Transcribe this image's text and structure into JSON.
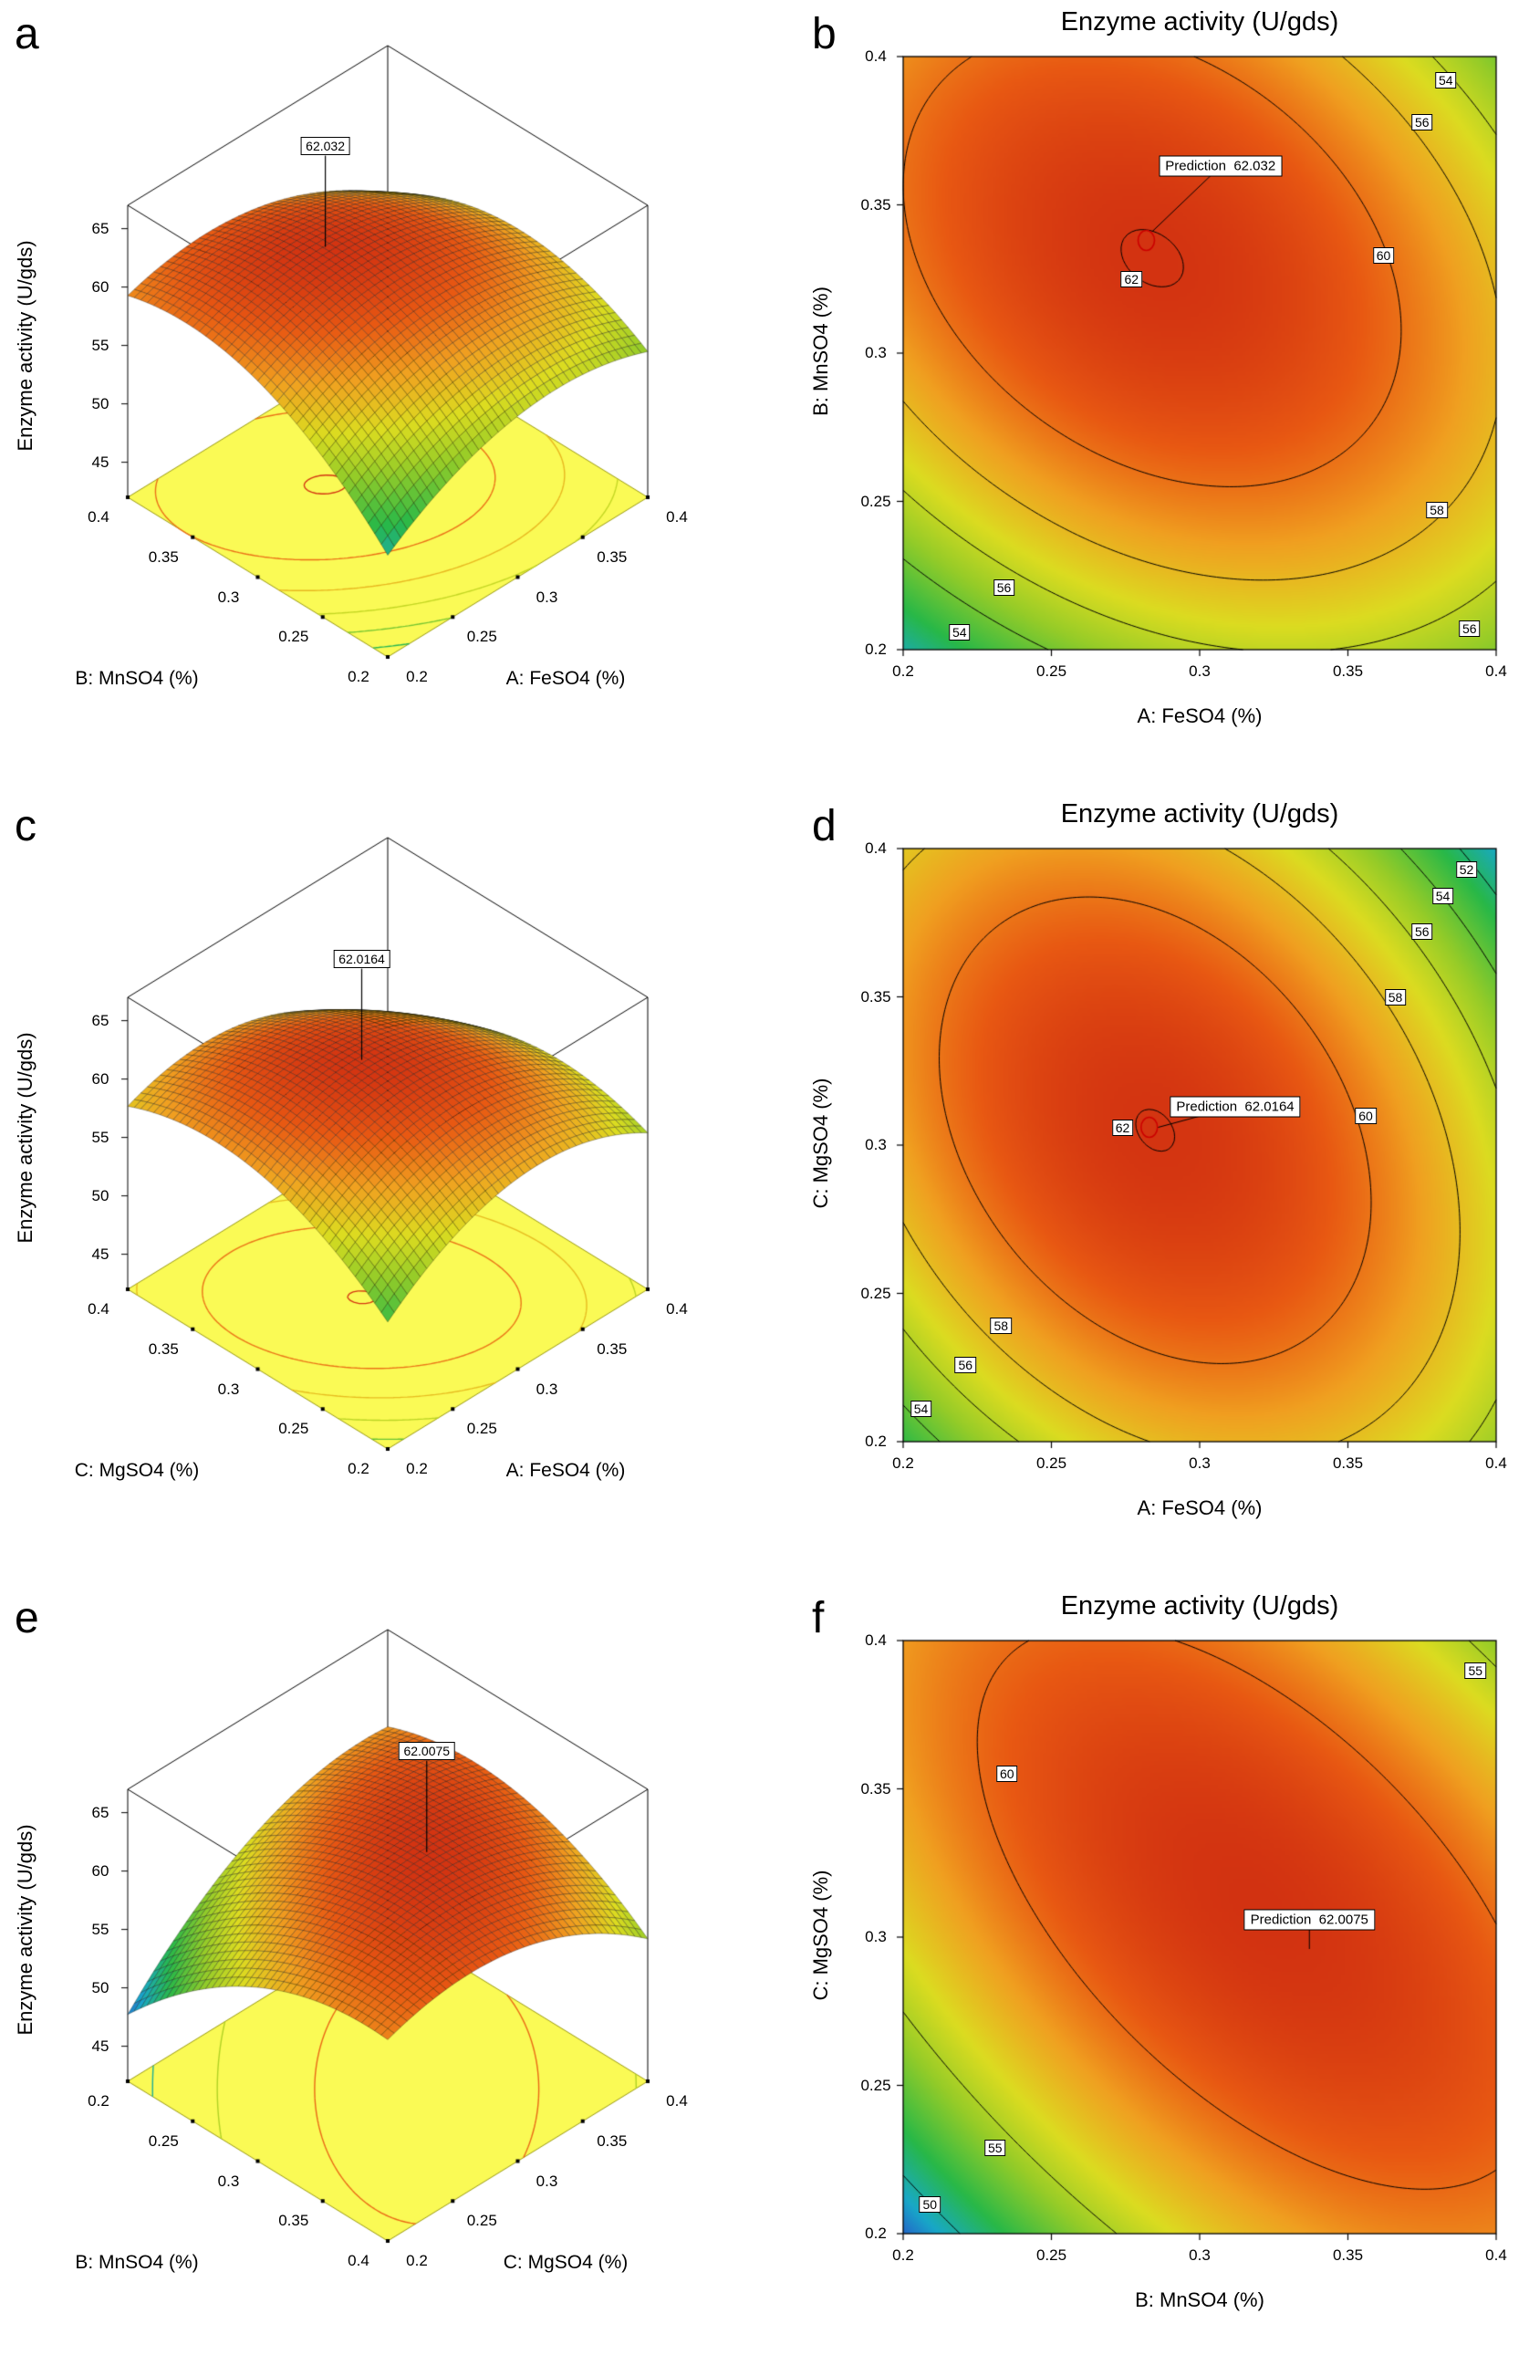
{
  "figure": {
    "background": "#ffffff"
  },
  "colors": {
    "colormap": [
      [
        0,
        "#2850c8"
      ],
      [
        0.13,
        "#18a8c8"
      ],
      [
        0.28,
        "#28b848"
      ],
      [
        0.45,
        "#96cc28"
      ],
      [
        0.58,
        "#dcdc20"
      ],
      [
        0.72,
        "#f0a020"
      ],
      [
        0.84,
        "#e85812"
      ],
      [
        1,
        "#c41a10"
      ]
    ],
    "surface_floor": "#fafa55",
    "marker_red": "#cc0000"
  },
  "chart_data": [
    {
      "type": "surface3d",
      "letter": "a",
      "z_axis": "Enzyme activity (U/gds)",
      "left_axis": "B: MnSO4 (%)",
      "right_axis": "A: FeSO4 (%)",
      "left_ticks": [
        "0.2",
        "0.25",
        "0.3",
        "0.35",
        "0.4"
      ],
      "right_ticks": [
        "0.2",
        "0.25",
        "0.3",
        "0.35",
        "0.4"
      ],
      "z_ticks": [
        "45",
        "50",
        "55",
        "60",
        "65"
      ],
      "zlim": [
        45,
        65
      ],
      "left_range": [
        0.2,
        0.4
      ],
      "right_range": [
        0.2,
        0.4
      ],
      "peak_label": "62.032",
      "model": {
        "zmax": 62.032,
        "a0": 0.284,
        "b0": 0.332,
        "caa": 3.2,
        "cbb": 3.8,
        "cab": 2.2
      },
      "crange": [
        48,
        63
      ],
      "base_levels": [
        52,
        54,
        56,
        58,
        60,
        62
      ]
    },
    {
      "type": "contour",
      "letter": "b",
      "title": "Enzyme activity (U/gds)",
      "x_axis": "A: FeSO4 (%)",
      "y_axis": "B: MnSO4 (%)",
      "x_ticks": [
        "0.2",
        "0.25",
        "0.3",
        "0.35",
        "0.4"
      ],
      "y_ticks": [
        "0.2",
        "0.25",
        "0.3",
        "0.35",
        "0.4"
      ],
      "x_range": [
        0.2,
        0.4
      ],
      "y_range": [
        0.2,
        0.4
      ],
      "model": {
        "zmax": 62.032,
        "a0": 0.284,
        "b0": 0.332,
        "caa": 3.2,
        "cbb": 3.8,
        "cab": 2.2
      },
      "crange": [
        48,
        63
      ],
      "levels": [
        54,
        56,
        58,
        60,
        62
      ],
      "contour_labels": [
        {
          "v": "54",
          "x": 0.383,
          "y": 0.392
        },
        {
          "v": "56",
          "x": 0.375,
          "y": 0.378
        },
        {
          "v": "60",
          "x": 0.362,
          "y": 0.333
        },
        {
          "v": "58",
          "x": 0.38,
          "y": 0.247
        },
        {
          "v": "56",
          "x": 0.391,
          "y": 0.207
        },
        {
          "v": "56",
          "x": 0.234,
          "y": 0.221
        },
        {
          "v": "54",
          "x": 0.219,
          "y": 0.206
        },
        {
          "v": "62",
          "x": 0.277,
          "y": 0.325
        }
      ],
      "prediction": {
        "label": "Prediction",
        "value": "62.032",
        "x": 0.284,
        "y": 0.341,
        "box_x": 0.307,
        "box_y": 0.363
      },
      "marker": {
        "x": 0.282,
        "y": 0.338
      }
    },
    {
      "type": "surface3d",
      "letter": "c",
      "z_axis": "Enzyme activity (U/gds)",
      "left_axis": "C: MgSO4 (%)",
      "right_axis": "A: FeSO4 (%)",
      "left_ticks": [
        "0.2",
        "0.25",
        "0.3",
        "0.35",
        "0.4"
      ],
      "right_ticks": [
        "0.2",
        "0.25",
        "0.3",
        "0.35",
        "0.4"
      ],
      "z_ticks": [
        "45",
        "50",
        "55",
        "60",
        "65"
      ],
      "zlim": [
        45,
        65
      ],
      "left_range": [
        0.2,
        0.4
      ],
      "right_range": [
        0.2,
        0.4
      ],
      "peak_label": "62.0164",
      "model": {
        "zmax": 62.0164,
        "a0": 0.285,
        "b0": 0.305,
        "caa": 4.2,
        "cbb": 3.6,
        "cab": 2.4
      },
      "crange": [
        48.5,
        63
      ],
      "base_levels": [
        52,
        54,
        56,
        58,
        60,
        62
      ]
    },
    {
      "type": "contour",
      "letter": "d",
      "title": "Enzyme activity (U/gds)",
      "x_axis": "A: FeSO4 (%)",
      "y_axis": "C: MgSO4 (%)",
      "x_ticks": [
        "0.2",
        "0.25",
        "0.3",
        "0.35",
        "0.4"
      ],
      "y_ticks": [
        "0.2",
        "0.25",
        "0.3",
        "0.35",
        "0.4"
      ],
      "x_range": [
        0.2,
        0.4
      ],
      "y_range": [
        0.2,
        0.4
      ],
      "model": {
        "zmax": 62.0164,
        "a0": 0.285,
        "b0": 0.305,
        "caa": 4.2,
        "cbb": 3.6,
        "cab": 2.4
      },
      "crange": [
        48.5,
        63
      ],
      "levels": [
        52,
        54,
        56,
        58,
        60,
        62
      ],
      "contour_labels": [
        {
          "v": "52",
          "x": 0.39,
          "y": 0.393
        },
        {
          "v": "54",
          "x": 0.382,
          "y": 0.384
        },
        {
          "v": "56",
          "x": 0.375,
          "y": 0.372
        },
        {
          "v": "58",
          "x": 0.366,
          "y": 0.35
        },
        {
          "v": "60",
          "x": 0.356,
          "y": 0.31
        },
        {
          "v": "62",
          "x": 0.274,
          "y": 0.306
        },
        {
          "v": "58",
          "x": 0.233,
          "y": 0.239
        },
        {
          "v": "56",
          "x": 0.221,
          "y": 0.226
        },
        {
          "v": "54",
          "x": 0.206,
          "y": 0.211
        }
      ],
      "prediction": {
        "label": "Prediction",
        "value": "62.0164",
        "x": 0.286,
        "y": 0.306,
        "box_x": 0.312,
        "box_y": 0.313
      },
      "marker": {
        "x": 0.283,
        "y": 0.306
      }
    },
    {
      "type": "surface3d",
      "letter": "e",
      "z_axis": "Enzyme activity (U/gds)",
      "left_axis": "B: MnSO4 (%)",
      "right_axis": "C: MgSO4 (%)",
      "left_ticks": [
        "0.4",
        "0.35",
        "0.3",
        "0.25",
        "0.2"
      ],
      "right_ticks": [
        "0.2",
        "0.25",
        "0.3",
        "0.35",
        "0.4"
      ],
      "z_ticks": [
        "45",
        "50",
        "55",
        "60",
        "65"
      ],
      "zlim": [
        45,
        65
      ],
      "left_range": [
        0.4,
        0.2
      ],
      "right_range": [
        0.2,
        0.4
      ],
      "peak_label": "62.0075",
      "model": {
        "zmax": 62.0075,
        "a0": 0.31,
        "b0": 0.32,
        "caa": 3.4,
        "cbb": 3.4,
        "cab": 4.0
      },
      "crange": [
        47,
        63
      ],
      "base_levels": [
        50,
        55,
        60
      ]
    },
    {
      "type": "contour",
      "letter": "f",
      "title": "Enzyme activity (U/gds)",
      "x_axis": "B: MnSO4 (%)",
      "y_axis": "C: MgSO4 (%)",
      "x_ticks": [
        "0.2",
        "0.25",
        "0.3",
        "0.35",
        "0.4"
      ],
      "y_ticks": [
        "0.2",
        "0.25",
        "0.3",
        "0.35",
        "0.4"
      ],
      "x_range": [
        0.2,
        0.4
      ],
      "y_range": [
        0.2,
        0.4
      ],
      "model": {
        "zmax": 62.0075,
        "a0": 0.32,
        "b0": 0.31,
        "caa": 3.4,
        "cbb": 3.4,
        "cab": 4.0
      },
      "crange": [
        47,
        63
      ],
      "levels": [
        50,
        55,
        60
      ],
      "contour_labels": [
        {
          "v": "55",
          "x": 0.393,
          "y": 0.39
        },
        {
          "v": "60",
          "x": 0.235,
          "y": 0.355
        },
        {
          "v": "55",
          "x": 0.231,
          "y": 0.229
        },
        {
          "v": "50",
          "x": 0.209,
          "y": 0.21
        }
      ],
      "prediction": {
        "label": "Prediction",
        "value": "62.0075",
        "x": 0.337,
        "y": 0.296,
        "box_x": 0.337,
        "box_y": 0.306
      },
      "marker": null
    }
  ]
}
